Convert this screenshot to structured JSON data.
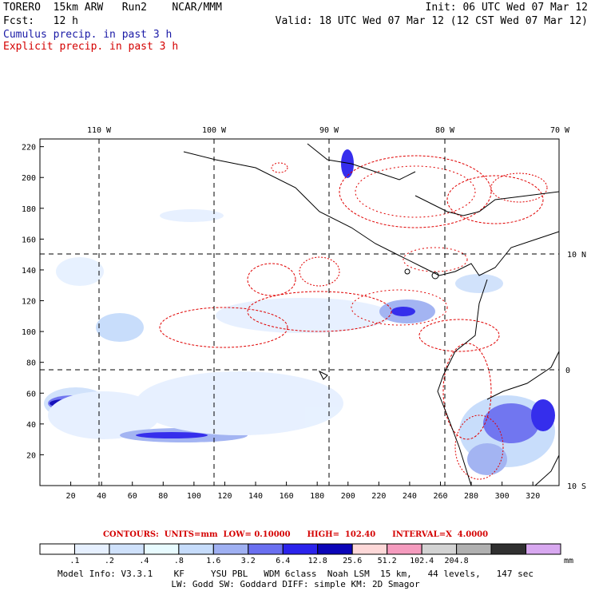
{
  "header": {
    "model": "TORERO  15km ARW   Run2    NCAR/MMM",
    "init": "Init: 06 UTC Wed 07 Mar 12",
    "fcst": "Fcst:   12 h",
    "valid": "Valid: 18 UTC Wed 07 Mar 12 (12 CST Wed 07 Mar 12)",
    "cumulus": "Cumulus precip. in past 3 h",
    "explicit": "Explicit precip. in past 3 h"
  },
  "map": {
    "lon_labels": [
      "110 W",
      "100 W",
      "90 W",
      "80 W",
      "70 W"
    ],
    "lat_labels_right": [
      "10 N",
      "0",
      "10 S"
    ],
    "x_ticks": [
      "20",
      "40",
      "60",
      "80",
      "100",
      "120",
      "140",
      "160",
      "180",
      "200",
      "220",
      "240",
      "260",
      "280",
      "300",
      "320"
    ],
    "y_ticks": [
      "20",
      "40",
      "60",
      "80",
      "100",
      "120",
      "140",
      "160",
      "180",
      "200",
      "220"
    ]
  },
  "contours_line": "CONTOURS:  UNITS=mm  LOW= 0.10000      HIGH=  102.40      INTERVAL=X  4.0000",
  "colorbar": {
    "colors": [
      "#ffffff",
      "#e6f0ff",
      "#cfe1fb",
      "#e8fbff",
      "#c6dcfb",
      "#9fb0f2",
      "#6a6ff0",
      "#2b23ec",
      "#0b05b8",
      "#fdd8d8",
      "#f59bbe",
      "#d3d3d3",
      "#b0b0b0",
      "#303030",
      "#d8a8f0"
    ],
    "labels": [
      ".1",
      ".2",
      ".4",
      ".8",
      "1.6",
      "3.2",
      "6.4",
      "12.8",
      "25.6",
      "51.2",
      "102.4",
      "204.8"
    ],
    "unit": "mm"
  },
  "footer": {
    "line1": "Model Info: V3.3.1    KF     YSU PBL   WDM 6class  Noah LSM  15 km,   44 levels,   147 sec",
    "line2": "LW: Godd SW: Goddard DIFF: simple KM: 2D Smagor"
  }
}
